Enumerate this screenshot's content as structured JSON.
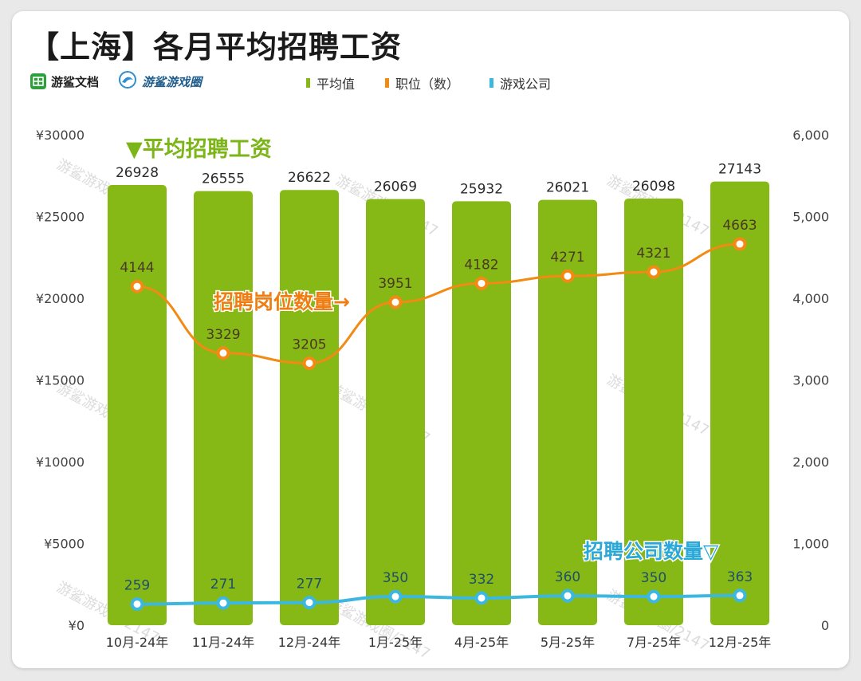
{
  "title": "【上海】各月平均招聘工资",
  "brands": [
    {
      "name": "游鲨文档",
      "icon": "grid-doc-icon"
    },
    {
      "name": "游鲨游戏圈",
      "icon": "shark-logo-icon"
    }
  ],
  "colors": {
    "bar": "#86b816",
    "positions": "#f28a14",
    "companies": "#3bb7e0",
    "ann_salary": "#7cb518",
    "ann_positions": "#f07d12",
    "ann_companies": "#2aa8d8"
  },
  "watermark_text": "游鲨游戏圈/2147",
  "chart_data": {
    "type": "bar",
    "categories": [
      "10月-24年",
      "11月-24年",
      "12月-24年",
      "1月-25年",
      "4月-25年",
      "5月-25年",
      "7月-25年",
      "12月-25年"
    ],
    "series": [
      {
        "name": "平均值",
        "type": "bar",
        "axis": "left",
        "values": [
          26928,
          26555,
          26622,
          26069,
          25932,
          26021,
          26098,
          27143
        ]
      },
      {
        "name": "职位（数）",
        "type": "line",
        "axis": "right",
        "values": [
          4144,
          3329,
          3205,
          3951,
          4182,
          4271,
          4321,
          4663
        ]
      },
      {
        "name": "游戏公司",
        "type": "line",
        "axis": "right",
        "values": [
          259,
          271,
          277,
          350,
          332,
          360,
          350,
          363
        ]
      }
    ],
    "left_axis": {
      "min": 0,
      "max": 30000,
      "step": 5000,
      "ticks": [
        "¥0",
        "¥5000",
        "¥10000",
        "¥15000",
        "¥20000",
        "¥25000",
        "¥30000"
      ]
    },
    "right_axis": {
      "min": 0,
      "max": 6000,
      "step": 1000,
      "ticks": [
        "0",
        "1,000",
        "2,000",
        "3,000",
        "4,000",
        "5,000",
        "6,000"
      ]
    },
    "annotations": {
      "salary": "▼平均招聘工资",
      "positions": "招聘岗位数量→",
      "companies": "招聘公司数量▽"
    },
    "legend_position": "top"
  }
}
